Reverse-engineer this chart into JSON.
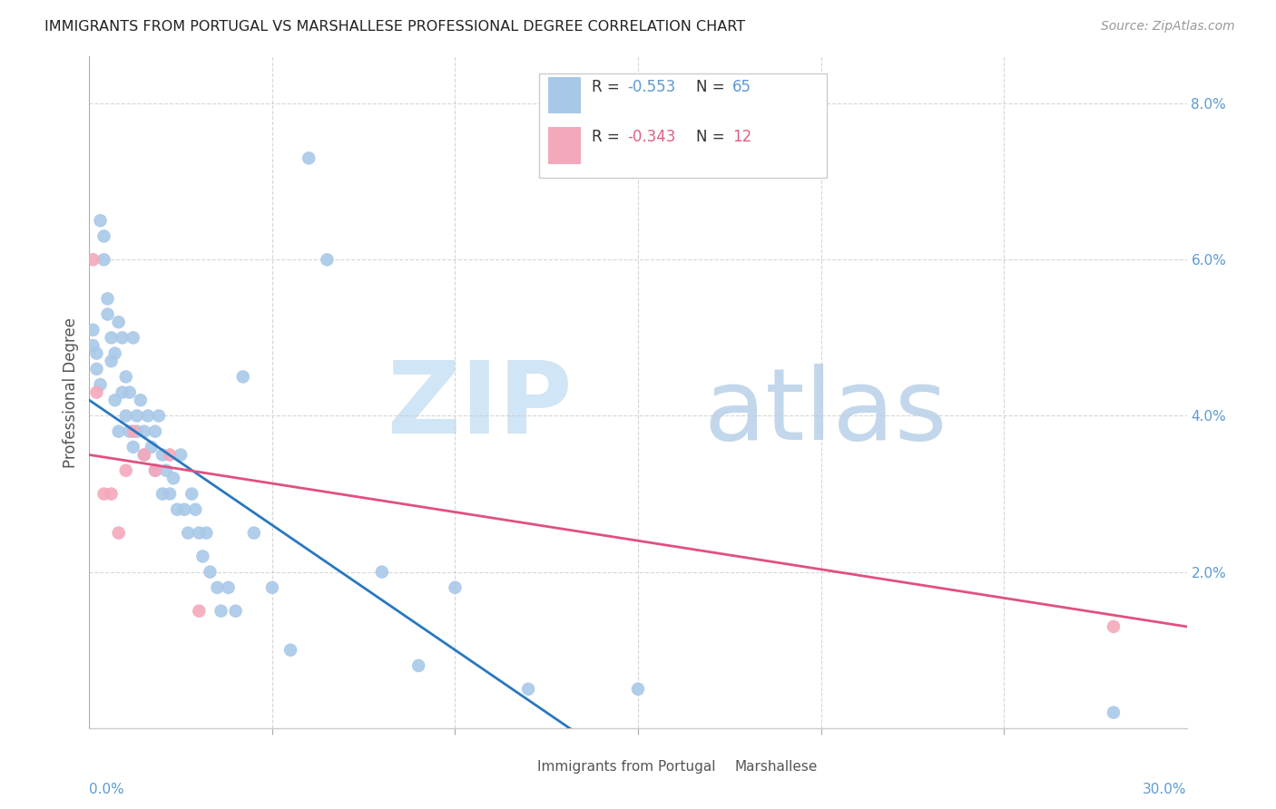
{
  "title": "IMMIGRANTS FROM PORTUGAL VS MARSHALLESE PROFESSIONAL DEGREE CORRELATION CHART",
  "source": "Source: ZipAtlas.com",
  "ylabel": "Professional Degree",
  "blue_color": "#a8c8e8",
  "pink_color": "#f4a8bc",
  "blue_line_color": "#2878c0",
  "pink_line_color": "#e05080",
  "blue_scatter_x": [
    0.001,
    0.001,
    0.002,
    0.002,
    0.003,
    0.003,
    0.004,
    0.004,
    0.005,
    0.005,
    0.006,
    0.006,
    0.007,
    0.007,
    0.008,
    0.008,
    0.009,
    0.009,
    0.01,
    0.01,
    0.011,
    0.011,
    0.012,
    0.012,
    0.013,
    0.013,
    0.014,
    0.015,
    0.015,
    0.016,
    0.017,
    0.018,
    0.018,
    0.019,
    0.02,
    0.02,
    0.021,
    0.022,
    0.023,
    0.024,
    0.025,
    0.026,
    0.027,
    0.028,
    0.029,
    0.03,
    0.031,
    0.032,
    0.033,
    0.035,
    0.036,
    0.038,
    0.04,
    0.042,
    0.045,
    0.05,
    0.055,
    0.06,
    0.065,
    0.08,
    0.09,
    0.1,
    0.12,
    0.15,
    0.28
  ],
  "blue_scatter_y": [
    0.051,
    0.049,
    0.048,
    0.046,
    0.065,
    0.044,
    0.063,
    0.06,
    0.055,
    0.053,
    0.05,
    0.047,
    0.048,
    0.042,
    0.052,
    0.038,
    0.05,
    0.043,
    0.045,
    0.04,
    0.038,
    0.043,
    0.05,
    0.036,
    0.04,
    0.038,
    0.042,
    0.035,
    0.038,
    0.04,
    0.036,
    0.038,
    0.033,
    0.04,
    0.035,
    0.03,
    0.033,
    0.03,
    0.032,
    0.028,
    0.035,
    0.028,
    0.025,
    0.03,
    0.028,
    0.025,
    0.022,
    0.025,
    0.02,
    0.018,
    0.015,
    0.018,
    0.015,
    0.045,
    0.025,
    0.018,
    0.01,
    0.073,
    0.06,
    0.02,
    0.008,
    0.018,
    0.005,
    0.005,
    0.002
  ],
  "pink_scatter_x": [
    0.001,
    0.002,
    0.004,
    0.006,
    0.008,
    0.01,
    0.012,
    0.015,
    0.018,
    0.022,
    0.03,
    0.28
  ],
  "pink_scatter_y": [
    0.06,
    0.043,
    0.03,
    0.03,
    0.025,
    0.033,
    0.038,
    0.035,
    0.033,
    0.035,
    0.015,
    0.013
  ],
  "blue_line_x": [
    0.0,
    0.1
  ],
  "blue_line_y": [
    0.042,
    0.01
  ],
  "pink_line_x": [
    0.0,
    0.3
  ],
  "pink_line_y": [
    0.035,
    0.013
  ],
  "xlim": [
    0.0,
    0.3
  ],
  "ylim": [
    0.0,
    0.086
  ],
  "ytick_vals": [
    0.0,
    0.02,
    0.04,
    0.06,
    0.08
  ],
  "ytick_labels": [
    "",
    "2.0%",
    "4.0%",
    "6.0%",
    "8.0%"
  ],
  "xtick_minor_positions": [
    0.05,
    0.1,
    0.15,
    0.2,
    0.25
  ],
  "legend_text": [
    [
      "R = ",
      "-0.553",
      "  N = ",
      "65"
    ],
    [
      "R = ",
      "-0.343",
      "  N = ",
      "12"
    ]
  ],
  "legend_colors": [
    "#5b9bd5",
    "#e06080"
  ],
  "bottom_legend_labels": [
    "Immigrants from Portugal",
    "Marshallese"
  ]
}
